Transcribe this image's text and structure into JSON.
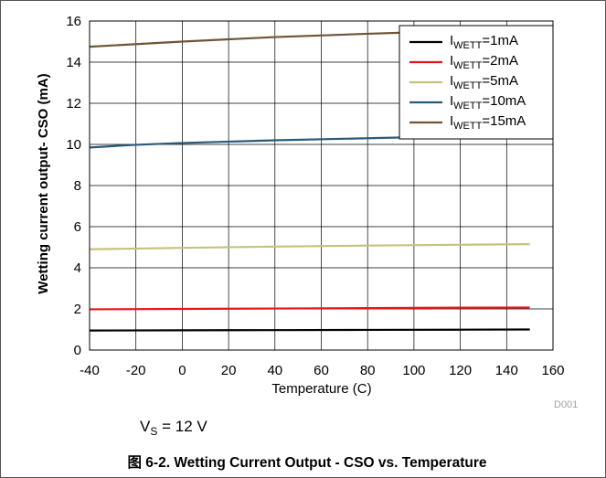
{
  "condition": {
    "prefix": "V",
    "sub": "S",
    "text": " = 12 V"
  },
  "caption": "图 6-2. Wetting Current Output - CSO vs. Temperature",
  "figure_code": "D001",
  "chart_data": {
    "type": "line",
    "xlabel": "Temperature (C)",
    "ylabel": "Wetting current output- CSO (mA)",
    "xlim": [
      -40,
      160
    ],
    "ylim": [
      0,
      16
    ],
    "xticks": [
      "-40",
      "-20",
      "0",
      "20",
      "40",
      "60",
      "80",
      "100",
      "120",
      "140",
      "160"
    ],
    "yticks": [
      "0",
      "2",
      "4",
      "6",
      "8",
      "10",
      "12",
      "14",
      "16"
    ],
    "grid": true,
    "legend_position": "top-right",
    "series": [
      {
        "label_main": "I",
        "label_sub": "WETT",
        "label_rest": "=1mA",
        "color": "#000000",
        "x": [
          -40,
          0,
          40,
          80,
          120,
          150
        ],
        "y": [
          0.95,
          0.96,
          0.97,
          0.98,
          0.99,
          1.0
        ]
      },
      {
        "label_main": "I",
        "label_sub": "WETT",
        "label_rest": "=2mA",
        "color": "#e8141b",
        "x": [
          -40,
          0,
          40,
          80,
          120,
          150
        ],
        "y": [
          1.98,
          2.0,
          2.02,
          2.04,
          2.06,
          2.07
        ]
      },
      {
        "label_main": "I",
        "label_sub": "WETT",
        "label_rest": "=5mA",
        "color": "#c4c27e",
        "x": [
          -40,
          0,
          40,
          80,
          120,
          150
        ],
        "y": [
          4.9,
          4.97,
          5.03,
          5.08,
          5.12,
          5.15
        ]
      },
      {
        "label_main": "I",
        "label_sub": "WETT",
        "label_rest": "=10mA",
        "color": "#2b5a78",
        "x": [
          -40,
          -20,
          0,
          40,
          80,
          100
        ],
        "y": [
          9.85,
          9.98,
          10.07,
          10.2,
          10.3,
          10.35
        ]
      },
      {
        "label_main": "I",
        "label_sub": "WETT",
        "label_rest": "=15mA",
        "color": "#6e5535",
        "x": [
          -40,
          0,
          40,
          80,
          100
        ],
        "y": [
          14.75,
          15.0,
          15.22,
          15.38,
          15.45
        ]
      }
    ]
  }
}
